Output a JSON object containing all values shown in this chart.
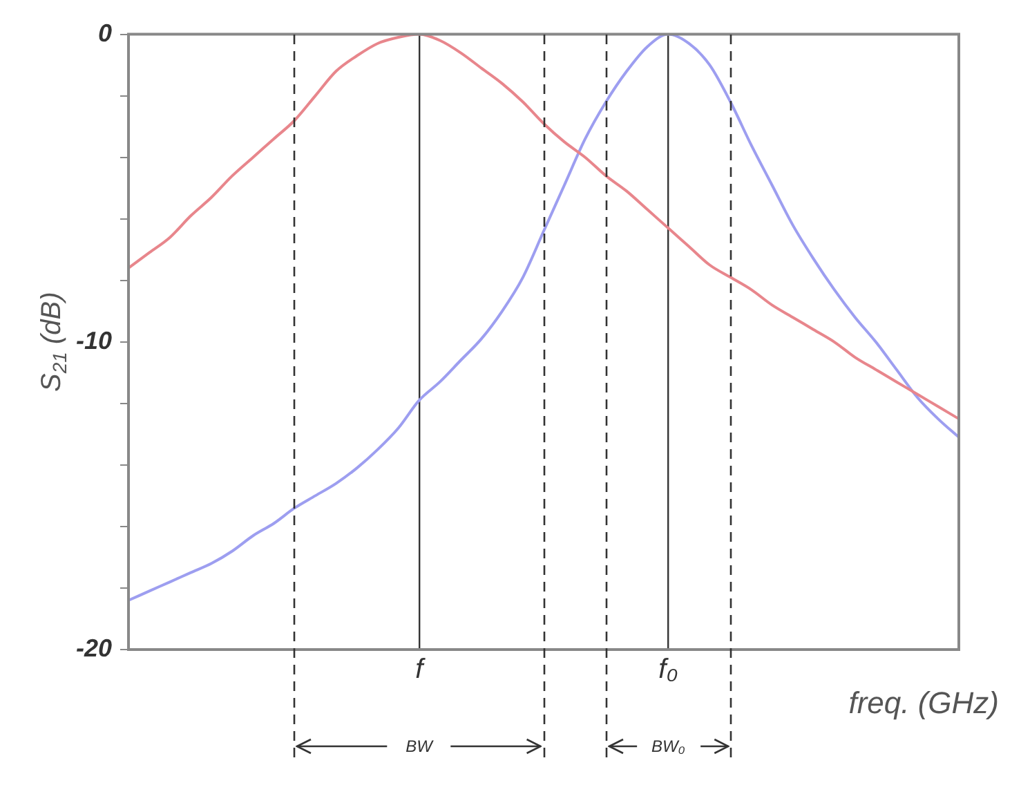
{
  "chart_data": {
    "type": "line",
    "ylabel": "S$_{21}$ (dB)",
    "xlabel": "freq. (GHz)",
    "categories": [
      null,
      null,
      null,
      null,
      null,
      null,
      null,
      null,
      null,
      null,
      null,
      null,
      null,
      null,
      "f",
      null,
      null,
      null,
      null,
      null,
      null,
      null,
      null,
      null,
      null,
      null,
      "f₀",
      null,
      null,
      null,
      null,
      null,
      null,
      null,
      null,
      null,
      null,
      null,
      null,
      null,
      null
    ],
    "series": [
      {
        "color": "#e8868c",
        "values": [
          -7.6,
          -7.1,
          -6.6,
          -5.9,
          -5.3,
          -4.6,
          -4.0,
          -3.4,
          -2.8,
          -2.0,
          -1.2,
          -0.7,
          -0.3,
          -0.1,
          0,
          -0.2,
          -0.6,
          -1.1,
          -1.6,
          -2.2,
          -2.9,
          -3.5,
          -4.0,
          -4.6,
          -5.1,
          -5.7,
          -6.3,
          -6.9,
          -7.5,
          -7.9,
          -8.3,
          -8.8,
          -9.2,
          -9.6,
          -10.0,
          -10.5,
          -10.9,
          -11.3,
          -11.7,
          -12.1,
          -12.5
        ]
      },
      {
        "color": "#9d9ef0",
        "values": [
          -18.4,
          -18.1,
          -17.8,
          -17.5,
          -17.2,
          -16.8,
          -16.3,
          -15.9,
          -15.4,
          -15.0,
          -14.6,
          -14.1,
          -13.5,
          -12.8,
          -11.9,
          -11.3,
          -10.6,
          -9.9,
          -9.0,
          -7.9,
          -6.4,
          -4.9,
          -3.4,
          -2.2,
          -1.2,
          -0.4,
          0,
          -0.3,
          -1.0,
          -2.2,
          -3.6,
          -4.9,
          -6.2,
          -7.3,
          -8.3,
          -9.2,
          -10.0,
          -10.9,
          -11.8,
          -12.5,
          -13.1
        ]
      }
    ],
    "ylim": [
      -20,
      0
    ],
    "yticks": [
      {
        "value": -20,
        "label": "-20"
      },
      {
        "value": -18,
        "label": null
      },
      {
        "value": -16,
        "label": null
      },
      {
        "value": -14,
        "label": null
      },
      {
        "value": -12,
        "label": null
      },
      {
        "value": -10,
        "label": "-10"
      },
      {
        "value": -8,
        "label": null
      },
      {
        "value": -6,
        "label": null
      },
      {
        "value": -4,
        "label": null
      },
      {
        "value": -2,
        "label": null
      },
      {
        "value": 0,
        "label": "0"
      }
    ],
    "annotations": [
      "BW",
      "BW₀"
    ],
    "grid": "x",
    "legend": false,
    "marker": "none",
    "line_style": "solid"
  }
}
